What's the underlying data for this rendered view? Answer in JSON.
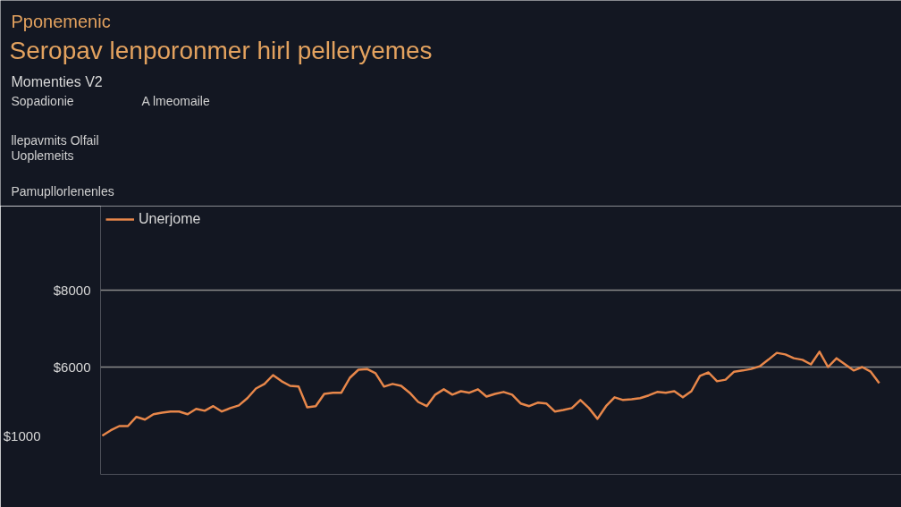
{
  "chart_data": {
    "type": "line",
    "title": "Seropav lenporonmer hirl pelleryemes",
    "subtitle": "Pponemenic",
    "legend_title": "Momenties V2",
    "annotations": [
      "Sopadionie",
      "A lmeomaile",
      "llepavmits Olfail",
      "Uoplemeits",
      "Pamupllorlenenles",
      "$1000"
    ],
    "categories": [
      null,
      null,
      null,
      null,
      null,
      null,
      null,
      null,
      null,
      null,
      null,
      null,
      null,
      null,
      null,
      null,
      null,
      null,
      null,
      null,
      null,
      null,
      null,
      null,
      null,
      null,
      null,
      null,
      null,
      null,
      null,
      null,
      null,
      null,
      null,
      null,
      null,
      null,
      null,
      null,
      null,
      null,
      null,
      null,
      null,
      null,
      null,
      null,
      null,
      null,
      null,
      null,
      null,
      null,
      null,
      null,
      null,
      null,
      null,
      null,
      null,
      null,
      null,
      null,
      null,
      null,
      null,
      null,
      null,
      null,
      null,
      null,
      null,
      null,
      null,
      null,
      null,
      null,
      null,
      null,
      null,
      null,
      null,
      null,
      null,
      null,
      null,
      null,
      null,
      null,
      null,
      null
    ],
    "series": [
      {
        "name": "Unerjome",
        "color": "#e8874a",
        "values": [
          4210,
          4350,
          4460,
          4460,
          4700,
          4630,
          4770,
          4810,
          4840,
          4840,
          4770,
          4910,
          4860,
          4980,
          4840,
          4930,
          5000,
          5190,
          5440,
          5560,
          5790,
          5630,
          5510,
          5490,
          4950,
          4980,
          5300,
          5330,
          5330,
          5720,
          5930,
          5950,
          5840,
          5490,
          5560,
          5510,
          5330,
          5090,
          4980,
          5280,
          5420,
          5280,
          5370,
          5330,
          5420,
          5230,
          5300,
          5350,
          5280,
          5050,
          4980,
          5070,
          5050,
          4840,
          4880,
          4930,
          5140,
          4930,
          4650,
          4980,
          5210,
          5140,
          5160,
          5190,
          5260,
          5350,
          5330,
          5370,
          5210,
          5370,
          5770,
          5860,
          5630,
          5670,
          5880,
          5910,
          5950,
          6020,
          6190,
          6370,
          6330,
          6230,
          6190,
          6070,
          6400,
          6000,
          6230,
          6070,
          5910,
          6000,
          5880,
          5580
        ]
      }
    ],
    "ylim": [
      3200,
      10200
    ],
    "yticks": [
      {
        "value": 8000,
        "label": "$8000"
      },
      {
        "value": 6000,
        "label": "$6000"
      }
    ],
    "tick_labels": "y",
    "grid": "y",
    "legend": "top left",
    "line_style": "solid"
  }
}
